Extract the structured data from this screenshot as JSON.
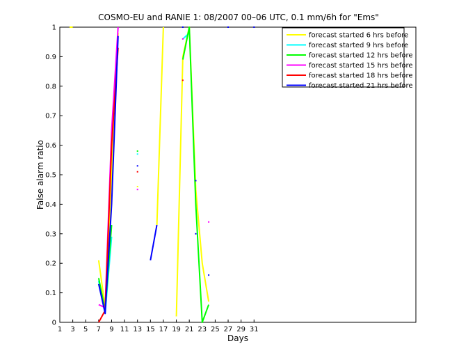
{
  "chart_data": {
    "type": "line",
    "title": "COSMO-EU and RANIE 1: 08/2007 00–06 UTC, 0.1 mm/6h for \"Ems\"",
    "xlabel": "Days",
    "ylabel": "False alarm ratio",
    "xlim": [
      1,
      56
    ],
    "ylim": [
      0,
      1
    ],
    "xticks": [
      1,
      3,
      5,
      7,
      9,
      11,
      13,
      15,
      17,
      19,
      21,
      23,
      25,
      27,
      29,
      31
    ],
    "yticks": [
      0,
      0.1,
      0.2,
      0.3,
      0.4,
      0.5,
      0.6,
      0.7,
      0.8,
      0.9,
      1
    ],
    "legend_position": "top-right",
    "grid": false,
    "series": [
      {
        "name": "forecast started 6 hrs before",
        "color": "#ffff00",
        "segments": [
          [
            [
              2.5,
              1.0
            ],
            [
              3.0,
              1.0
            ]
          ],
          [
            [
              7.0,
              0.21
            ],
            [
              8.0,
              0.05
            ],
            [
              9.0,
              0.5
            ],
            [
              10.0,
              0.98
            ]
          ],
          [
            [
              16.0,
              0.33
            ],
            [
              17.0,
              1.0
            ]
          ],
          [
            [
              19.0,
              0.02
            ],
            [
              20.0,
              0.9
            ],
            [
              21.0,
              1.0
            ],
            [
              22.0,
              0.45
            ],
            [
              23.0,
              0.2
            ],
            [
              24.0,
              0.07
            ]
          ]
        ],
        "points": [
          [
            13.0,
            0.46
          ]
        ]
      },
      {
        "name": "forecast started 9 hrs before",
        "color": "#00ffff",
        "segments": [
          [
            [
              7.0,
              0.14
            ],
            [
              8.0,
              0.03
            ],
            [
              9.0,
              0.29
            ]
          ],
          [
            [
              20.0,
              0.96
            ],
            [
              21.0,
              0.98
            ]
          ]
        ],
        "points": [
          [
            13.0,
            0.57
          ]
        ]
      },
      {
        "name": "forecast started 12 hrs before",
        "color": "#00ff00",
        "segments": [
          [
            [
              7.0,
              0.15
            ],
            [
              8.0,
              0.04
            ],
            [
              9.0,
              0.33
            ]
          ],
          [
            [
              20.0,
              0.89
            ],
            [
              21.0,
              1.0
            ],
            [
              22.0,
              0.4
            ],
            [
              23.0,
              0.0
            ],
            [
              24.0,
              0.06
            ]
          ]
        ],
        "points": [
          [
            13.0,
            0.58
          ]
        ]
      },
      {
        "name": "forecast started 15 hrs before",
        "color": "#ff00ff",
        "segments": [
          [
            [
              7.0,
              0.06
            ],
            [
              8.0,
              0.05
            ],
            [
              9.0,
              0.65
            ],
            [
              10.0,
              1.0
            ]
          ]
        ],
        "points": [
          [
            13.0,
            0.45
          ],
          [
            20.0,
            0.96
          ],
          [
            24.0,
            0.34
          ]
        ]
      },
      {
        "name": "forecast started 18 hrs before",
        "color": "#ff0000",
        "segments": [
          [
            [
              7.0,
              0.0
            ],
            [
              8.0,
              0.04
            ],
            [
              9.0,
              0.6
            ],
            [
              10.0,
              0.93
            ]
          ]
        ],
        "points": [
          [
            13.0,
            0.51
          ],
          [
            20.0,
            0.82
          ]
        ]
      },
      {
        "name": "forecast started 21 hrs before",
        "color": "#0000ff",
        "segments": [
          [
            [
              7.0,
              0.13
            ],
            [
              8.0,
              0.03
            ],
            [
              9.0,
              0.4
            ],
            [
              10.0,
              0.97
            ]
          ],
          [
            [
              15.0,
              0.21
            ],
            [
              16.0,
              0.33
            ]
          ]
        ],
        "points": [
          [
            13.0,
            0.53
          ],
          [
            20.0,
            1.0
          ],
          [
            22.0,
            0.48
          ],
          [
            22.0,
            0.3
          ],
          [
            24.0,
            0.16
          ],
          [
            27.0,
            1.0
          ],
          [
            31.0,
            1.0
          ]
        ]
      }
    ]
  }
}
